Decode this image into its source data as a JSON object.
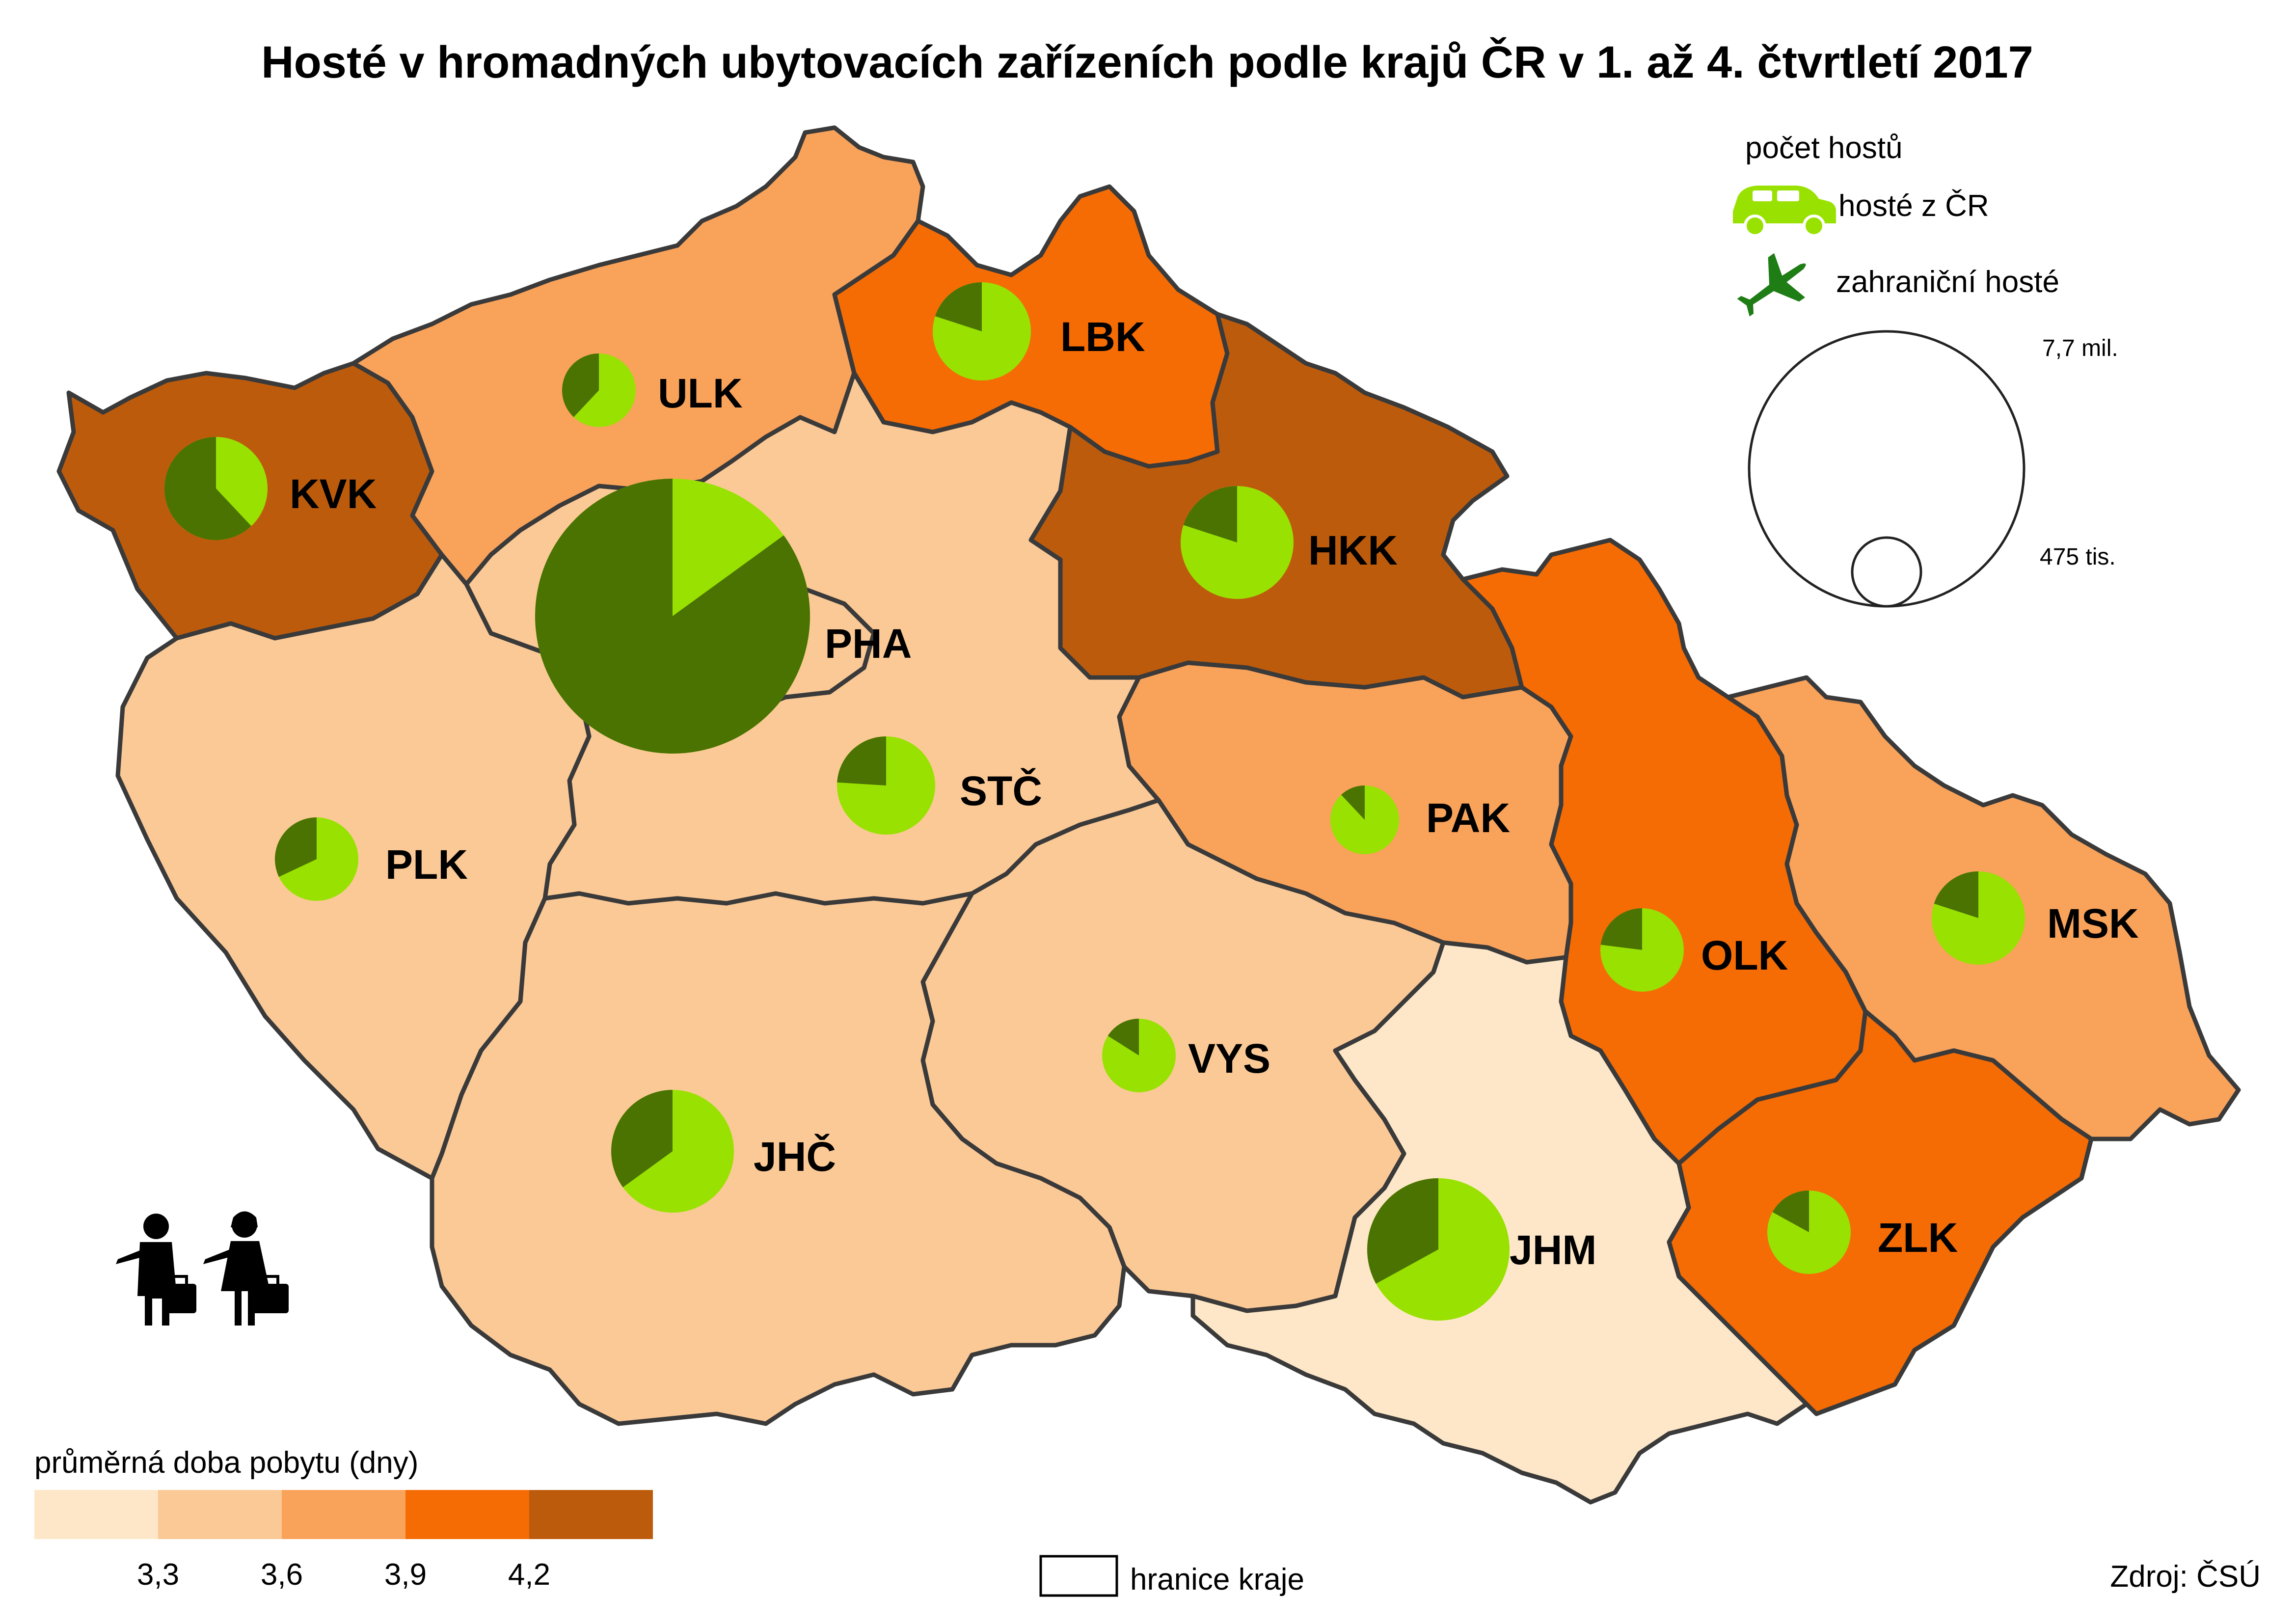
{
  "title": "Hosté v hromadných ubytovacích zařízeních podle krajů ČR v 1. až 4. čtvrtletí 2017",
  "legend_symbols": {
    "heading": "počet hostů",
    "domestic_label": "hosté z ČR",
    "foreign_label": "zahraniční hosté",
    "size_large_label": "7,7 mil.",
    "size_small_label": "475 tis."
  },
  "legend_classes": {
    "heading": "průměrná doba pobytu (dny)",
    "breaks": [
      "3,3",
      "3,6",
      "3,9",
      "4,2"
    ],
    "colors": [
      "#FDE7C8",
      "#FBC996",
      "#F9A25A",
      "#F56B04",
      "#BD5B0C"
    ]
  },
  "boundary_legend": "hranice kraje",
  "source": "Zdroj: ČSÚ",
  "colors": {
    "domestic": "#99E101",
    "foreign": "#4A7301",
    "border": "#3a3a3a"
  },
  "regions": [
    {
      "code": "KVK",
      "class": 4,
      "foreign_share": 0.62
    },
    {
      "code": "ULK",
      "class": 2,
      "foreign_share": 0.38
    },
    {
      "code": "LBK",
      "class": 3,
      "foreign_share": 0.2
    },
    {
      "code": "HKK",
      "class": 4,
      "foreign_share": 0.2
    },
    {
      "code": "PHA",
      "class": 1,
      "foreign_share": 0.85
    },
    {
      "code": "STČ",
      "class": 1,
      "foreign_share": 0.24
    },
    {
      "code": "PLK",
      "class": 1,
      "foreign_share": 0.32
    },
    {
      "code": "PAK",
      "class": 2,
      "foreign_share": 0.12
    },
    {
      "code": "OLK",
      "class": 3,
      "foreign_share": 0.23
    },
    {
      "code": "MSK",
      "class": 2,
      "foreign_share": 0.2
    },
    {
      "code": "VYS",
      "class": 1,
      "foreign_share": 0.16
    },
    {
      "code": "JHČ",
      "class": 1,
      "foreign_share": 0.35
    },
    {
      "code": "JHM",
      "class": 0,
      "foreign_share": 0.33
    },
    {
      "code": "ZLK",
      "class": 3,
      "foreign_share": 0.17
    }
  ]
}
